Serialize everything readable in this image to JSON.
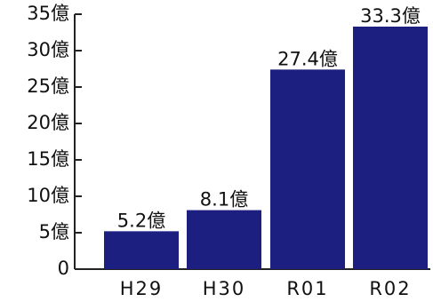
{
  "chart_data": {
    "type": "bar",
    "title": "",
    "xlabel": "",
    "ylabel": "",
    "categories": [
      "H29",
      "H30",
      "R01",
      "R02"
    ],
    "values": [
      5.2,
      8.1,
      27.4,
      33.3
    ],
    "data_labels": [
      "5.2億",
      "8.1億",
      "27.4億",
      "33.3億"
    ],
    "ylim": [
      0,
      35
    ],
    "y_ticks": [
      0,
      5,
      10,
      15,
      20,
      25,
      30,
      35
    ],
    "y_tick_labels": [
      "0",
      "5億",
      "10億",
      "15億",
      "20億",
      "25億",
      "30億",
      "35億"
    ],
    "grid": false,
    "legend": "none",
    "colors": {
      "bar": "#1c1f80",
      "axis": "#222222",
      "text": "#111111",
      "background": "#ffffff"
    }
  }
}
